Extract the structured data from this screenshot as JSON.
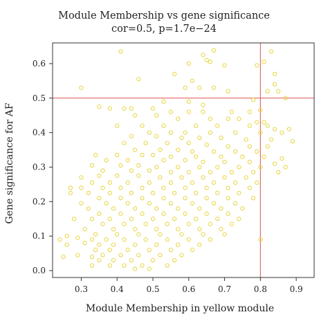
{
  "chart_data": {
    "type": "scatter",
    "title": "Module Membership vs gene significance",
    "subtitle": "cor=0.5, p=1.7e−24",
    "xlabel": "Module Membership in yellow module",
    "ylabel": "Gene significance for AF",
    "xlim": [
      0.22,
      0.95
    ],
    "ylim": [
      -0.02,
      0.66
    ],
    "xticks": [
      "0.3",
      "0.4",
      "0.5",
      "0.6",
      "0.7",
      "0.8",
      "0.9"
    ],
    "yticks": [
      "0.0",
      "0.1",
      "0.2",
      "0.3",
      "0.4",
      "0.5",
      "0.6"
    ],
    "point_color": "#e8d84a",
    "threshold_color": "#d9534f",
    "threshold_lines": {
      "x": 0.8,
      "y": 0.5
    },
    "grid": false,
    "series": [
      {
        "points": [
          [
            0.41,
            0.635
          ],
          [
            0.67,
            0.638
          ],
          [
            0.83,
            0.635
          ],
          [
            0.64,
            0.625
          ],
          [
            0.65,
            0.61
          ],
          [
            0.66,
            0.605
          ],
          [
            0.81,
            0.605
          ],
          [
            0.6,
            0.6
          ],
          [
            0.7,
            0.595
          ],
          [
            0.79,
            0.595
          ],
          [
            0.56,
            0.57
          ],
          [
            0.84,
            0.57
          ],
          [
            0.46,
            0.555
          ],
          [
            0.61,
            0.55
          ],
          [
            0.84,
            0.54
          ],
          [
            0.3,
            0.53
          ],
          [
            0.59,
            0.53
          ],
          [
            0.63,
            0.53
          ],
          [
            0.67,
            0.53
          ],
          [
            0.71,
            0.52
          ],
          [
            0.82,
            0.52
          ],
          [
            0.85,
            0.52
          ],
          [
            0.87,
            0.5
          ],
          [
            0.78,
            0.495
          ],
          [
            0.6,
            0.49
          ],
          [
            0.53,
            0.49
          ],
          [
            0.64,
            0.48
          ],
          [
            0.35,
            0.475
          ],
          [
            0.38,
            0.47
          ],
          [
            0.42,
            0.47
          ],
          [
            0.44,
            0.47
          ],
          [
            0.5,
            0.47
          ],
          [
            0.55,
            0.46
          ],
          [
            0.6,
            0.46
          ],
          [
            0.64,
            0.46
          ],
          [
            0.72,
            0.46
          ],
          [
            0.77,
            0.46
          ],
          [
            0.8,
            0.465
          ],
          [
            0.45,
            0.45
          ],
          [
            0.51,
            0.45
          ],
          [
            0.57,
            0.44
          ],
          [
            0.66,
            0.44
          ],
          [
            0.71,
            0.44
          ],
          [
            0.74,
            0.44
          ],
          [
            0.79,
            0.43
          ],
          [
            0.81,
            0.43
          ],
          [
            0.4,
            0.42
          ],
          [
            0.47,
            0.42
          ],
          [
            0.53,
            0.42
          ],
          [
            0.62,
            0.42
          ],
          [
            0.68,
            0.42
          ],
          [
            0.77,
            0.42
          ],
          [
            0.82,
            0.42
          ],
          [
            0.84,
            0.41
          ],
          [
            0.88,
            0.41
          ],
          [
            0.49,
            0.4
          ],
          [
            0.55,
            0.4
          ],
          [
            0.59,
            0.4
          ],
          [
            0.66,
            0.4
          ],
          [
            0.73,
            0.4
          ],
          [
            0.8,
            0.4
          ],
          [
            0.86,
            0.4
          ],
          [
            0.44,
            0.39
          ],
          [
            0.51,
            0.39
          ],
          [
            0.58,
            0.385
          ],
          [
            0.63,
            0.385
          ],
          [
            0.69,
            0.385
          ],
          [
            0.76,
            0.38
          ],
          [
            0.83,
            0.38
          ],
          [
            0.89,
            0.375
          ],
          [
            0.42,
            0.37
          ],
          [
            0.48,
            0.37
          ],
          [
            0.54,
            0.37
          ],
          [
            0.6,
            0.37
          ],
          [
            0.65,
            0.365
          ],
          [
            0.71,
            0.36
          ],
          [
            0.77,
            0.36
          ],
          [
            0.82,
            0.36
          ],
          [
            0.45,
            0.35
          ],
          [
            0.52,
            0.35
          ],
          [
            0.57,
            0.35
          ],
          [
            0.61,
            0.345
          ],
          [
            0.67,
            0.345
          ],
          [
            0.73,
            0.345
          ],
          [
            0.79,
            0.345
          ],
          [
            0.34,
            0.335
          ],
          [
            0.4,
            0.335
          ],
          [
            0.47,
            0.335
          ],
          [
            0.5,
            0.335
          ],
          [
            0.55,
            0.33
          ],
          [
            0.62,
            0.33
          ],
          [
            0.69,
            0.33
          ],
          [
            0.75,
            0.33
          ],
          [
            0.81,
            0.33
          ],
          [
            0.86,
            0.325
          ],
          [
            0.37,
            0.32
          ],
          [
            0.43,
            0.32
          ],
          [
            0.53,
            0.32
          ],
          [
            0.59,
            0.32
          ],
          [
            0.64,
            0.315
          ],
          [
            0.7,
            0.315
          ],
          [
            0.77,
            0.315
          ],
          [
            0.84,
            0.31
          ],
          [
            0.33,
            0.305
          ],
          [
            0.41,
            0.305
          ],
          [
            0.46,
            0.305
          ],
          [
            0.51,
            0.3
          ],
          [
            0.57,
            0.3
          ],
          [
            0.63,
            0.3
          ],
          [
            0.68,
            0.3
          ],
          [
            0.74,
            0.3
          ],
          [
            0.8,
            0.3
          ],
          [
            0.87,
            0.3
          ],
          [
            0.36,
            0.29
          ],
          [
            0.44,
            0.29
          ],
          [
            0.49,
            0.29
          ],
          [
            0.55,
            0.285
          ],
          [
            0.6,
            0.285
          ],
          [
            0.66,
            0.285
          ],
          [
            0.72,
            0.285
          ],
          [
            0.78,
            0.285
          ],
          [
            0.85,
            0.285
          ],
          [
            0.3,
            0.27
          ],
          [
            0.35,
            0.275
          ],
          [
            0.4,
            0.275
          ],
          [
            0.46,
            0.275
          ],
          [
            0.52,
            0.27
          ],
          [
            0.58,
            0.27
          ],
          [
            0.64,
            0.27
          ],
          [
            0.7,
            0.27
          ],
          [
            0.76,
            0.27
          ],
          [
            0.33,
            0.255
          ],
          [
            0.38,
            0.255
          ],
          [
            0.43,
            0.255
          ],
          [
            0.49,
            0.255
          ],
          [
            0.55,
            0.255
          ],
          [
            0.61,
            0.255
          ],
          [
            0.67,
            0.255
          ],
          [
            0.73,
            0.255
          ],
          [
            0.79,
            0.255
          ],
          [
            0.27,
            0.24
          ],
          [
            0.3,
            0.24
          ],
          [
            0.36,
            0.24
          ],
          [
            0.41,
            0.24
          ],
          [
            0.47,
            0.24
          ],
          [
            0.53,
            0.24
          ],
          [
            0.59,
            0.24
          ],
          [
            0.65,
            0.24
          ],
          [
            0.71,
            0.24
          ],
          [
            0.77,
            0.24
          ],
          [
            0.27,
            0.225
          ],
          [
            0.32,
            0.225
          ],
          [
            0.38,
            0.225
          ],
          [
            0.44,
            0.225
          ],
          [
            0.5,
            0.225
          ],
          [
            0.56,
            0.225
          ],
          [
            0.62,
            0.225
          ],
          [
            0.68,
            0.225
          ],
          [
            0.74,
            0.225
          ],
          [
            0.35,
            0.21
          ],
          [
            0.41,
            0.21
          ],
          [
            0.47,
            0.21
          ],
          [
            0.53,
            0.21
          ],
          [
            0.59,
            0.21
          ],
          [
            0.65,
            0.21
          ],
          [
            0.71,
            0.21
          ],
          [
            0.78,
            0.21
          ],
          [
            0.3,
            0.195
          ],
          [
            0.37,
            0.195
          ],
          [
            0.43,
            0.195
          ],
          [
            0.49,
            0.195
          ],
          [
            0.55,
            0.195
          ],
          [
            0.61,
            0.195
          ],
          [
            0.67,
            0.195
          ],
          [
            0.73,
            0.195
          ],
          [
            0.32,
            0.18
          ],
          [
            0.39,
            0.18
          ],
          [
            0.45,
            0.18
          ],
          [
            0.51,
            0.18
          ],
          [
            0.57,
            0.18
          ],
          [
            0.63,
            0.18
          ],
          [
            0.69,
            0.18
          ],
          [
            0.75,
            0.18
          ],
          [
            0.35,
            0.165
          ],
          [
            0.41,
            0.165
          ],
          [
            0.47,
            0.165
          ],
          [
            0.53,
            0.165
          ],
          [
            0.59,
            0.165
          ],
          [
            0.65,
            0.165
          ],
          [
            0.71,
            0.165
          ],
          [
            0.28,
            0.15
          ],
          [
            0.33,
            0.15
          ],
          [
            0.38,
            0.15
          ],
          [
            0.44,
            0.15
          ],
          [
            0.5,
            0.15
          ],
          [
            0.56,
            0.15
          ],
          [
            0.62,
            0.15
          ],
          [
            0.68,
            0.15
          ],
          [
            0.74,
            0.15
          ],
          [
            0.36,
            0.135
          ],
          [
            0.42,
            0.135
          ],
          [
            0.48,
            0.135
          ],
          [
            0.54,
            0.135
          ],
          [
            0.6,
            0.135
          ],
          [
            0.66,
            0.135
          ],
          [
            0.72,
            0.135
          ],
          [
            0.31,
            0.12
          ],
          [
            0.39,
            0.12
          ],
          [
            0.45,
            0.12
          ],
          [
            0.51,
            0.12
          ],
          [
            0.57,
            0.12
          ],
          [
            0.63,
            0.12
          ],
          [
            0.69,
            0.12
          ],
          [
            0.34,
            0.105
          ],
          [
            0.4,
            0.105
          ],
          [
            0.46,
            0.105
          ],
          [
            0.52,
            0.105
          ],
          [
            0.58,
            0.105
          ],
          [
            0.64,
            0.105
          ],
          [
            0.7,
            0.105
          ],
          [
            0.26,
            0.1
          ],
          [
            0.29,
            0.095
          ],
          [
            0.33,
            0.09
          ],
          [
            0.37,
            0.09
          ],
          [
            0.42,
            0.09
          ],
          [
            0.48,
            0.09
          ],
          [
            0.54,
            0.09
          ],
          [
            0.6,
            0.09
          ],
          [
            0.66,
            0.09
          ],
          [
            0.8,
            0.09
          ],
          [
            0.24,
            0.09
          ],
          [
            0.31,
            0.08
          ],
          [
            0.35,
            0.075
          ],
          [
            0.39,
            0.075
          ],
          [
            0.45,
            0.075
          ],
          [
            0.51,
            0.075
          ],
          [
            0.57,
            0.075
          ],
          [
            0.63,
            0.075
          ],
          [
            0.26,
            0.075
          ],
          [
            0.34,
            0.06
          ],
          [
            0.38,
            0.06
          ],
          [
            0.43,
            0.06
          ],
          [
            0.49,
            0.06
          ],
          [
            0.55,
            0.06
          ],
          [
            0.61,
            0.06
          ],
          [
            0.25,
            0.04
          ],
          [
            0.29,
            0.045
          ],
          [
            0.33,
            0.04
          ],
          [
            0.36,
            0.045
          ],
          [
            0.41,
            0.045
          ],
          [
            0.46,
            0.045
          ],
          [
            0.52,
            0.045
          ],
          [
            0.58,
            0.045
          ],
          [
            0.35,
            0.03
          ],
          [
            0.39,
            0.03
          ],
          [
            0.44,
            0.03
          ],
          [
            0.5,
            0.03
          ],
          [
            0.56,
            0.03
          ],
          [
            0.33,
            0.015
          ],
          [
            0.38,
            0.015
          ],
          [
            0.42,
            0.015
          ],
          [
            0.47,
            0.015
          ],
          [
            0.54,
            0.015
          ],
          [
            0.45,
            0.005
          ],
          [
            0.49,
            0.005
          ]
        ]
      }
    ]
  }
}
